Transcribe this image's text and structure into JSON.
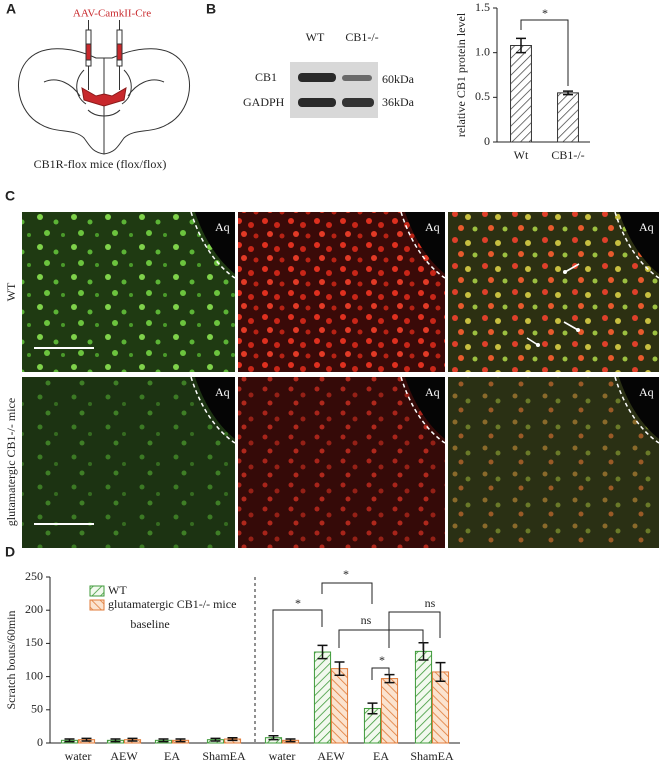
{
  "panel_labels": [
    "A",
    "B",
    "C",
    "D"
  ],
  "panel_a": {
    "vector_label": "AAV-CamkII-Cre",
    "caption": "CB1R-flox mice (flox/flox)"
  },
  "blot": {
    "columns": [
      "WT",
      "CB1-/-"
    ],
    "rows": [
      {
        "label": "CB1",
        "size": "60kDa"
      },
      {
        "label": "GADPH",
        "size": "36kDa"
      }
    ]
  },
  "panel_c": {
    "row_labels": [
      "WT",
      "glutamatergic CB1-/- mice"
    ],
    "region_label": "Aq"
  },
  "chart_data": [
    {
      "type": "bar",
      "y_label": "relative CB1 protein level",
      "categories": [
        "Wt",
        "CB1-/-"
      ],
      "values": [
        1.08,
        0.55
      ],
      "errors": [
        0.08,
        0.02
      ],
      "color": "#333333",
      "ylim": [
        0,
        1.5
      ],
      "yticks": [
        0,
        0.5,
        {
          "value": 1,
          "label": "1.0"
        },
        1.5
      ],
      "significance": [
        "*"
      ]
    },
    {
      "type": "bar",
      "y_label": "Scratch bouts/60min",
      "annotation": "baseline",
      "categories": [
        "water",
        "AEW",
        "EA",
        "ShamEA",
        "water",
        "AEW",
        "EA",
        "ShamEA"
      ],
      "series": [
        {
          "name": "WT",
          "color": "#3f9a3a",
          "values": [
            4,
            4,
            4,
            5,
            8,
            137,
            52,
            138
          ],
          "errors": [
            2,
            2,
            2,
            2,
            3,
            10,
            8,
            13
          ]
        },
        {
          "name": "glutamatergic CB1-/- mice",
          "color": "#e07b39",
          "values": [
            5,
            5,
            4,
            6,
            4,
            112,
            97,
            107
          ],
          "errors": [
            2,
            2,
            2,
            2,
            2,
            10,
            6,
            14
          ]
        }
      ],
      "ylim": [
        0,
        250
      ],
      "yticks": [
        0,
        50,
        100,
        150,
        200,
        250
      ],
      "significance": [
        "*",
        "*",
        "ns",
        "*",
        "ns"
      ]
    }
  ]
}
